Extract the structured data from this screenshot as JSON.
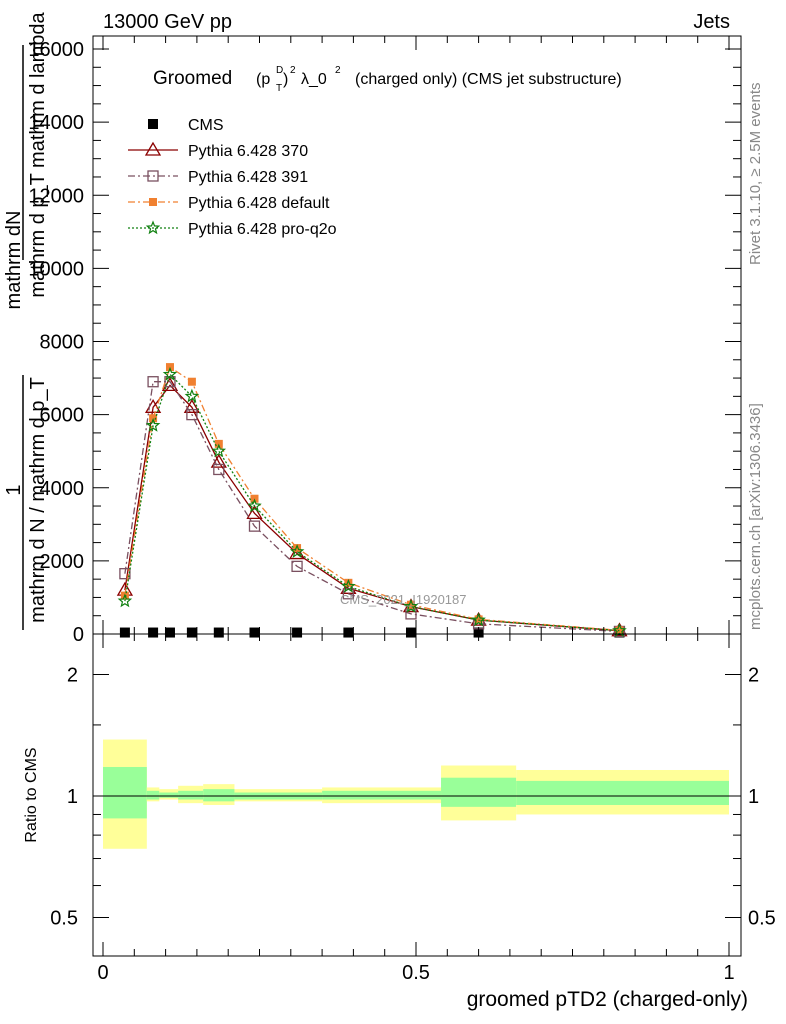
{
  "header": {
    "left": "13000 GeV pp",
    "right": "Jets"
  },
  "title": {
    "prefix": "Groomed",
    "expr": "(p",
    "sup_d": "D",
    "sub_t": "T",
    "close": ")",
    "sup_2": "2",
    "lambda": "λ_0",
    "sup_l2": "2",
    "suffix": "(charged only) (CMS jet substructure)"
  },
  "side_labels": {
    "rivet": "Rivet 3.1.10, ≥ 2.5M events",
    "mcplots": "mcplots.cern.ch [arXiv:1306.3436]"
  },
  "watermark": "CMS_2021_I1920187",
  "ylabel": {
    "line1": "mathrm dN",
    "line1b": "mathrm d p_T mathrm d lambda",
    "line2_num": "1",
    "line2_den": "mathrm d N / mathrm d p_T"
  },
  "ratio_ylabel": "Ratio to CMS",
  "xlabel": "groomed pTD2 (charged-only)",
  "chart_data": [
    {
      "type": "line",
      "panel": "main",
      "x_ticks": [
        "0",
        "0.5",
        "1"
      ],
      "y_ticks": [
        "0",
        "2000",
        "4000",
        "6000",
        "8000",
        "10000",
        "12000",
        "14000",
        "16000"
      ],
      "xlim": [
        0,
        1
      ],
      "ylim": [
        0,
        16500
      ],
      "x": [
        0.035,
        0.08,
        0.107,
        0.142,
        0.185,
        0.242,
        0.31,
        0.392,
        0.492,
        0.6,
        0.825
      ],
      "series": [
        {
          "name": "CMS",
          "color": "#000000",
          "marker": "filled-square",
          "style": "none",
          "values": [
            40,
            40,
            40,
            40,
            40,
            40,
            40,
            40,
            40,
            40,
            40
          ]
        },
        {
          "name": "Pythia 6.428 370",
          "color": "#8b0000",
          "marker": "open-triangle",
          "style": "solid",
          "values": [
            1200,
            6200,
            6800,
            6200,
            4700,
            3300,
            2200,
            1250,
            750,
            380,
            90
          ]
        },
        {
          "name": "Pythia 6.428 391",
          "color": "#7a5060",
          "marker": "open-square",
          "style": "dashdot",
          "values": [
            1650,
            6900,
            6900,
            6000,
            4500,
            2950,
            1850,
            1100,
            550,
            280,
            70
          ]
        },
        {
          "name": "Pythia 6.428 default",
          "color": "#f08030",
          "marker": "filled-square-small",
          "style": "dashdot",
          "values": [
            1050,
            5900,
            7300,
            6900,
            5200,
            3700,
            2350,
            1400,
            800,
            400,
            100
          ]
        },
        {
          "name": "Pythia 6.428 pro-q2o",
          "color": "#108010",
          "marker": "star",
          "style": "dotted",
          "values": [
            900,
            5700,
            7100,
            6500,
            5000,
            3500,
            2250,
            1300,
            750,
            380,
            90
          ]
        }
      ]
    },
    {
      "type": "area",
      "panel": "ratio",
      "y_ticks": [
        "0.5",
        "1",
        "2"
      ],
      "ylim": [
        0.4,
        2.4
      ],
      "reference": 1,
      "bin_edges": [
        0.0,
        0.07,
        0.09,
        0.12,
        0.16,
        0.21,
        0.35,
        0.54,
        0.66,
        1.0
      ],
      "band_outer": {
        "color": "#ffff99",
        "lo": [
          0.74,
          0.97,
          0.98,
          0.96,
          0.95,
          0.97,
          0.96,
          0.87,
          0.9
        ],
        "hi": [
          1.38,
          1.05,
          1.04,
          1.06,
          1.07,
          1.04,
          1.05,
          1.19,
          1.16
        ]
      },
      "band_inner": {
        "color": "#99ff99",
        "lo": [
          0.88,
          0.98,
          0.99,
          0.98,
          0.97,
          0.98,
          0.98,
          0.94,
          0.95
        ],
        "hi": [
          1.18,
          1.03,
          1.02,
          1.03,
          1.04,
          1.02,
          1.03,
          1.11,
          1.09
        ]
      }
    }
  ]
}
